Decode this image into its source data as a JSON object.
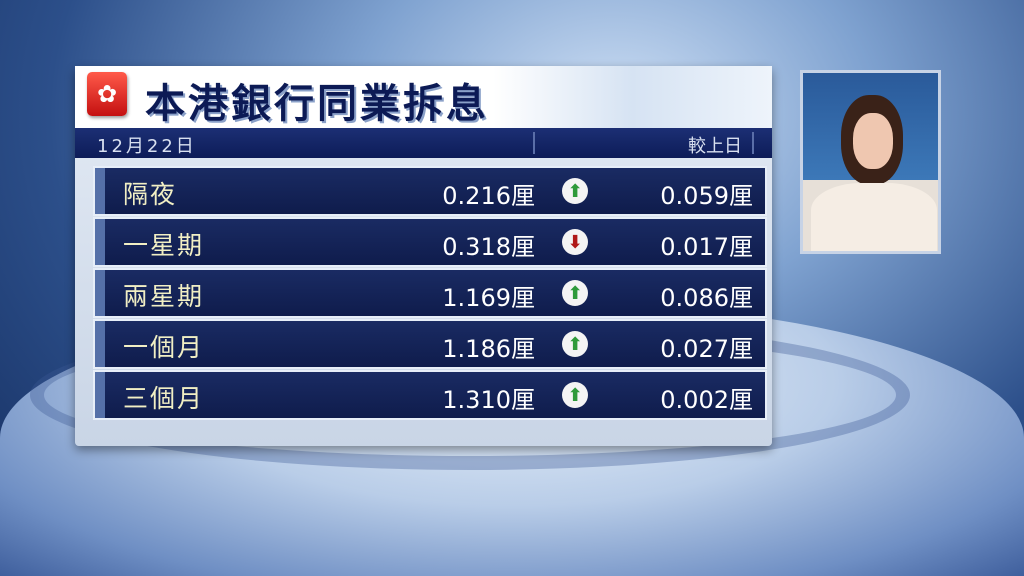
{
  "title": "本港銀行同業拆息",
  "date": "12月22日",
  "compare_header": "較上日",
  "colors": {
    "up": "#2e9a3a",
    "down": "#b01818",
    "label": "#f1efc4"
  },
  "rows": [
    {
      "term": "隔夜",
      "rate": "0.216厘",
      "direction": "up",
      "arrow": "⬆",
      "change": "0.059厘"
    },
    {
      "term": "一星期",
      "rate": "0.318厘",
      "direction": "down",
      "arrow": "⬇",
      "change": "0.017厘"
    },
    {
      "term": "兩星期",
      "rate": "1.169厘",
      "direction": "up",
      "arrow": "⬆",
      "change": "0.086厘"
    },
    {
      "term": "一個月",
      "rate": "1.186厘",
      "direction": "up",
      "arrow": "⬆",
      "change": "0.027厘"
    },
    {
      "term": "三個月",
      "rate": "1.310厘",
      "direction": "up",
      "arrow": "⬆",
      "change": "0.002厘"
    }
  ]
}
